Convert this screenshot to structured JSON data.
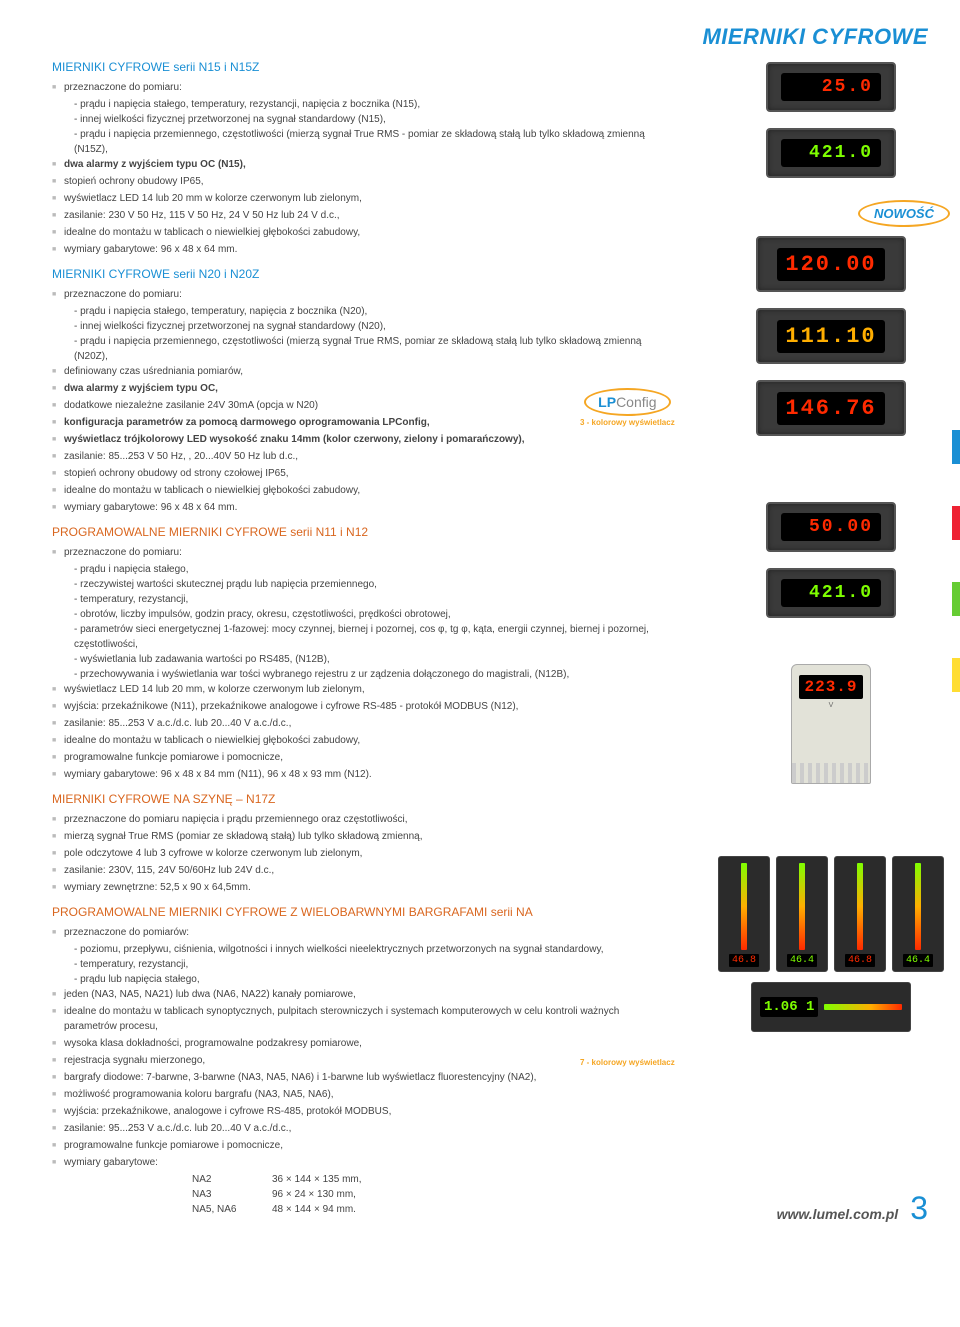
{
  "header": {
    "title": "MIERNIKI CYFROWE"
  },
  "badges": {
    "nowosc": "NOWOŚĆ",
    "lpconfig_bold": "LP",
    "lpconfig_rest": "Config",
    "lpconfig_sub": "3 - kolorowy wyświetlacz",
    "caption7": "7 - kolorowy wyświetlacz"
  },
  "sections": [
    {
      "title": "MIERNIKI CYFROWE serii N15 i N15Z",
      "color": "blue",
      "items": [
        {
          "t": "przeznaczone do pomiaru:",
          "sub": [
            "- prądu i napięcia stałego, temperatury, rezystancji, napięcia z bocznika (N15),",
            "- innej wielkości fizycznej przetworzonej na sygnał standardowy (N15),",
            "- prądu i napięcia przemiennego, częstotliwości (mierzą sygnał True RMS - pomiar ze składową stałą lub tylko składową zmienną (N15Z),"
          ]
        },
        {
          "t": "dwa alarmy z wyjściem typu OC (N15),",
          "b": true
        },
        {
          "t": "stopień ochrony obudowy IP65,"
        },
        {
          "t": "wyświetlacz LED 14 lub 20 mm w kolorze czerwonym lub zielonym,"
        },
        {
          "t": "zasilanie: 230 V 50 Hz, 115 V 50 Hz, 24 V 50 Hz lub 24 V d.c.,"
        },
        {
          "t": "idealne do montażu w tablicach o niewielkiej głębokości zabudowy,"
        },
        {
          "t": "wymiary gabarytowe: 96 x 48 x 64 mm."
        }
      ]
    },
    {
      "title": "MIERNIKI CYFROWE serii N20 i N20Z",
      "color": "blue",
      "items": [
        {
          "t": "przeznaczone do pomiaru:",
          "sub": [
            "- prądu i napięcia stałego, temperatury, napięcia z bocznika (N20),",
            "- innej wielkości fizycznej przetworzonej na sygnał standardowy (N20),",
            "- prądu i napięcia przemiennego, częstotliwości (mierzą sygnał True RMS, pomiar ze składową stałą lub tylko składową zmienną (N20Z),"
          ]
        },
        {
          "t": "definiowany czas uśredniania pomiarów,"
        },
        {
          "t": "dwa alarmy z wyjściem typu OC,",
          "b": true
        },
        {
          "t": "dodatkowe niezależne zasilanie 24V 30mA (opcja w N20)"
        },
        {
          "t": "konfiguracja parametrów za pomocą darmowego oprogramowania LPConfig,",
          "b": true
        },
        {
          "t": "wyświetlacz trójkolorowy LED wysokość znaku 14mm (kolor czerwony, zielony i pomarańczowy),",
          "b": true
        },
        {
          "t": "zasilanie: 85...253 V 50 Hz, , 20...40V 50 Hz lub d.c.,"
        },
        {
          "t": "stopień ochrony obudowy od strony czołowej IP65,"
        },
        {
          "t": "idealne do montażu w tablicach o niewielkiej głębokości zabudowy,"
        },
        {
          "t": "wymiary gabarytowe: 96 x 48 x 64 mm."
        }
      ]
    },
    {
      "title": "PROGRAMOWALNE MIERNIKI CYFROWE serii N11 i N12",
      "color": "orange",
      "items": [
        {
          "t": "przeznaczone do pomiaru:",
          "sub": [
            "- prądu i napięcia stałego,",
            "- rzeczywistej wartości skutecznej prądu lub napięcia przemiennego,",
            "- temperatury, rezystancji,",
            "- obrotów, liczby impulsów, godzin pracy, okresu, częstotliwości, prędkości obrotowej,",
            "- parametrów sieci energetycznej 1-fazowej: mocy czynnej, biernej i pozornej, cos φ, tg φ, kąta, energii czynnej, biernej i pozornej, częstotliwości,",
            "- wyświetlania lub zadawania wartości po RS485, (N12B),",
            "- przechowywania i wyświetlania war tości wybranego rejestru z ur ządzenia dołączonego do magistrali, (N12B),"
          ]
        },
        {
          "t": "wyświetlacz LED 14 lub 20 mm, w kolorze czerwonym lub zielonym,"
        },
        {
          "t": "wyjścia: przekaźnikowe (N11), przekaźnikowe analogowe i cyfrowe RS-485 - protokół MODBUS (N12),"
        },
        {
          "t": "zasilanie: 85...253 V a.c./d.c. lub 20...40 V a.c./d.c.,"
        },
        {
          "t": "idealne do montażu w tablicach o niewielkiej głębokości zabudowy,"
        },
        {
          "t": "programowalne funkcje pomiarowe i pomocnicze,"
        },
        {
          "t": "wymiary gabarytowe: 96 x 48 x 84 mm (N11), 96 x 48 x 93 mm (N12)."
        }
      ]
    },
    {
      "title": "MIERNIKI CYFROWE NA SZYNĘ – N17Z",
      "color": "orange",
      "items": [
        {
          "t": "przeznaczone do pomiaru napięcia i prądu przemiennego oraz częstotliwości,"
        },
        {
          "t": "mierzą sygnał True RMS (pomiar ze składową stałą) lub tylko składową zmienną,"
        },
        {
          "t": "pole odczytowe 4 lub 3 cyfrowe w kolorze czerwonym lub zielonym,"
        },
        {
          "t": "zasilanie: 230V, 115, 24V 50/60Hz lub 24V d.c.,"
        },
        {
          "t": "wymiary zewnętrzne: 52,5 x 90 x 64,5mm."
        }
      ]
    },
    {
      "title": "PROGRAMOWALNE MIERNIKI CYFROWE Z WIELOBARWNYMI BARGRAFAMI serii NA",
      "color": "orange",
      "items": [
        {
          "t": "przeznaczone do pomiarów:",
          "sub": [
            "- poziomu, przepływu, ciśnienia, wilgotności i innych wielkości nieelektrycznych przetworzonych na sygnał standardowy,",
            "- temperatury, rezystancji,",
            "- prądu lub napięcia stałego,"
          ]
        },
        {
          "t": "jeden (NA3, NA5, NA21) lub dwa (NA6, NA22) kanały pomiarowe,"
        },
        {
          "t": "idealne do montażu w tablicach synoptycznych, pulpitach sterowniczych i systemach komputerowych w celu kontroli ważnych parametrów procesu,"
        },
        {
          "t": "wysoka klasa dokładności, programowalne podzakresy pomiarowe,"
        },
        {
          "t": "rejestracja sygnału mierzonego,"
        },
        {
          "t": "bargrafy diodowe: 7-barwne, 3-barwne (NA3, NA5, NA6) i 1-barwne lub wyświetlacz fluorestencyjny (NA2),"
        },
        {
          "t": "możliwość programowania koloru bargrafu (NA3, NA5, NA6),"
        },
        {
          "t": "wyjścia: przekaźnikowe, analogowe i cyfrowe RS-485, protokół MODBUS,"
        },
        {
          "t": "zasilanie: 95...253 V a.c./d.c. lub 20...40 V a.c./d.c.,"
        },
        {
          "t": "programowalne funkcje pomiarowe i pomocnicze,"
        },
        {
          "t": "wymiary gabarytowe:",
          "table": [
            [
              "NA2",
              "36 × 144 × 135 mm,"
            ],
            [
              "NA3",
              "96 × 24 × 130 mm,"
            ],
            [
              "NA5, NA6",
              "48 × 144 × 94 mm."
            ]
          ]
        }
      ]
    }
  ],
  "meters": {
    "m1": "25.0",
    "m2": "421.0",
    "m3": "120.00",
    "m4": "111.10",
    "m5": "146.76",
    "m6": "50.00",
    "m7": "421.0",
    "m8": "223.9",
    "m8unit": "V",
    "bg1": "46.8",
    "bg2": "46.4",
    "bgh": "1.06 1"
  },
  "footer": {
    "url": "www.lumel.com.pl",
    "page": "3"
  }
}
